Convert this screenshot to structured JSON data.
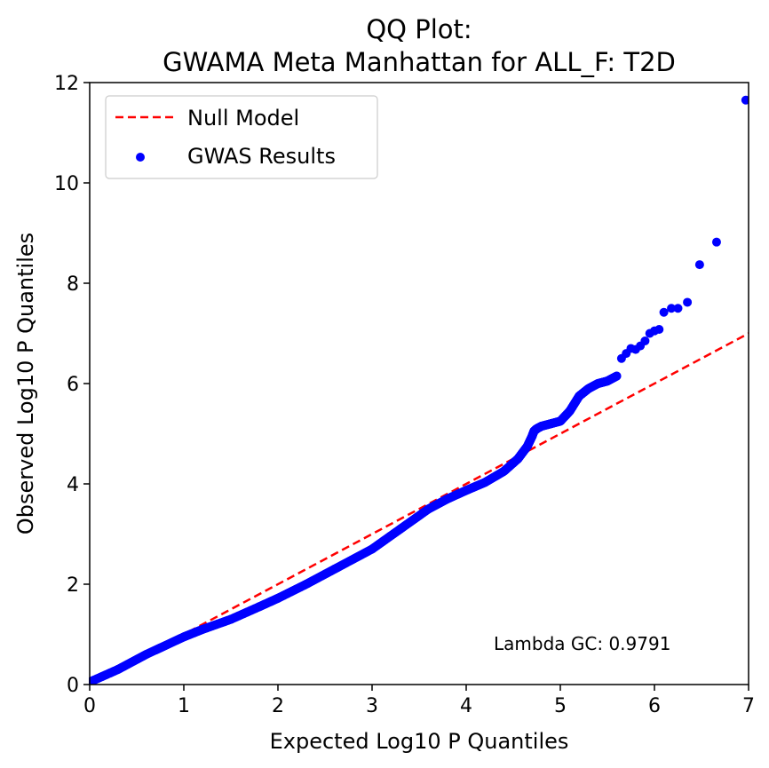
{
  "chart_data": {
    "type": "scatter",
    "title_line1": "QQ Plot:",
    "title_line2": "GWAMA Meta Manhattan for ALL_F: T2D",
    "xlabel": "Expected Log10 P Quantiles",
    "ylabel": "Observed Log10 P Quantiles",
    "xlim": [
      0,
      7
    ],
    "ylim": [
      0,
      12
    ],
    "xticks": [
      0,
      1,
      2,
      3,
      4,
      5,
      6,
      7
    ],
    "yticks": [
      0,
      2,
      4,
      6,
      8,
      10,
      12
    ],
    "grid": false,
    "legend_position": "top-left",
    "annotation": "Lambda GC: 0.9791",
    "colors": {
      "points": "#0000ff",
      "null_line": "#ff0000"
    },
    "series": [
      {
        "name": "Null Model",
        "kind": "line",
        "style": "dashed",
        "x": [
          0,
          7
        ],
        "y": [
          0,
          7
        ]
      },
      {
        "name": "GWAS Results",
        "kind": "scatter",
        "x": [
          0.0,
          0.3,
          0.6,
          1.0,
          1.2,
          1.5,
          1.8,
          2.0,
          2.3,
          2.6,
          3.0,
          3.3,
          3.6,
          3.8,
          4.0,
          4.2,
          4.4,
          4.55,
          4.65,
          4.7,
          4.72,
          4.75,
          4.8,
          4.9,
          5.0,
          5.1,
          5.2,
          5.3,
          5.4,
          5.5,
          5.6,
          5.65,
          5.7,
          5.75,
          5.8,
          5.85,
          5.9,
          5.95,
          6.0,
          6.05,
          6.1,
          6.18,
          6.25,
          6.35,
          6.48,
          6.66,
          6.97
        ],
        "y": [
          0.05,
          0.3,
          0.6,
          0.95,
          1.1,
          1.3,
          1.55,
          1.72,
          2.0,
          2.3,
          2.7,
          3.1,
          3.5,
          3.7,
          3.87,
          4.03,
          4.25,
          4.5,
          4.75,
          4.95,
          5.05,
          5.1,
          5.15,
          5.2,
          5.25,
          5.45,
          5.75,
          5.9,
          6.0,
          6.05,
          6.15,
          6.5,
          6.6,
          6.7,
          6.68,
          6.75,
          6.85,
          7.0,
          7.05,
          7.08,
          7.42,
          7.5,
          7.5,
          7.62,
          8.37,
          8.82,
          11.65
        ]
      }
    ]
  }
}
